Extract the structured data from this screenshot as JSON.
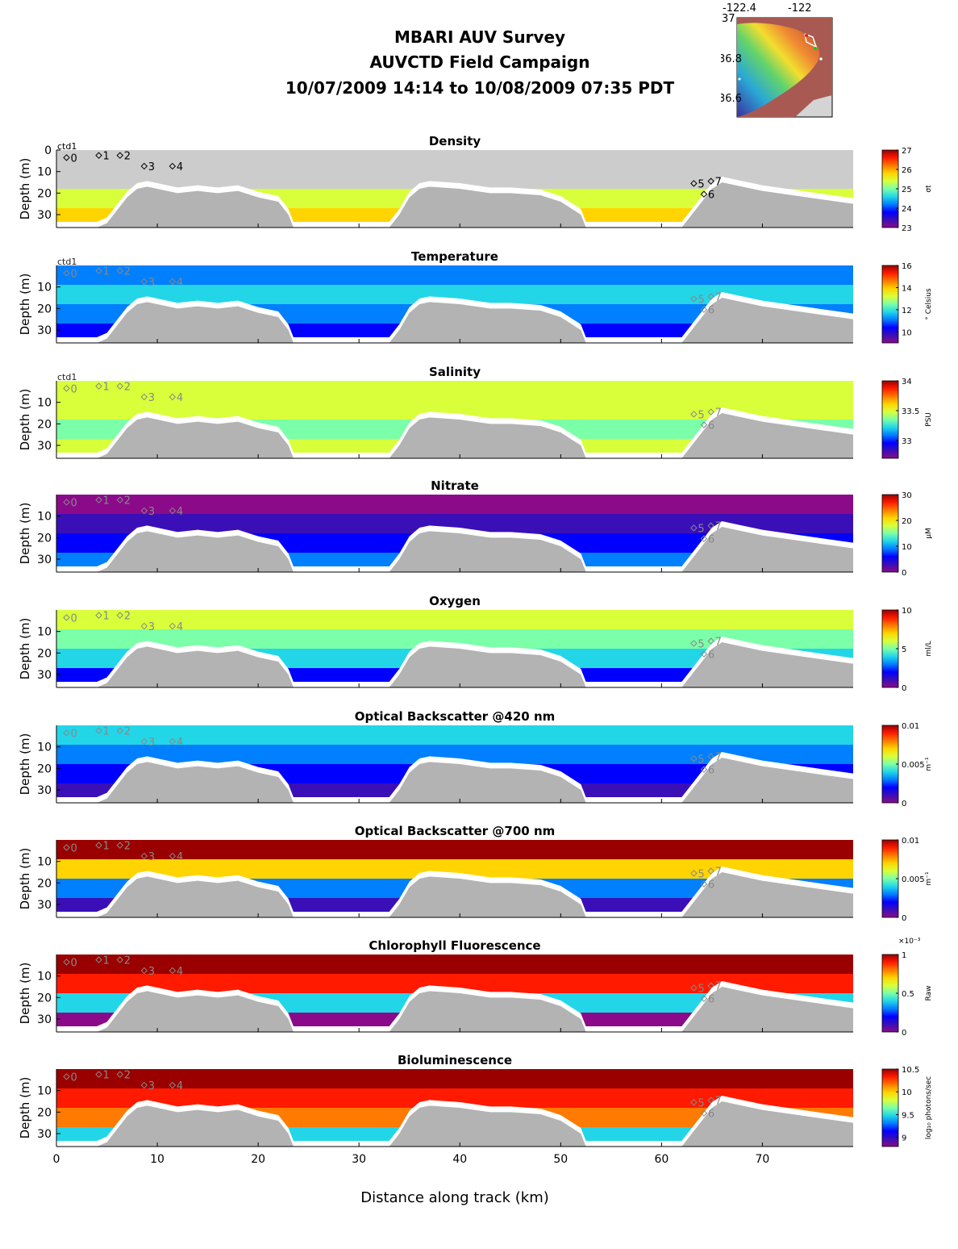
{
  "title": {
    "line1": "MBARI AUV Survey",
    "line2": "AUVCTD Field Campaign",
    "line3": "10/07/2009 14:14  to 10/08/2009 07:35 PDT"
  },
  "map_inset": {
    "x_ticks": [
      "-122.4",
      "-122"
    ],
    "y_ticks": [
      "37",
      "36.8",
      "36.6"
    ]
  },
  "colors": {
    "terrain": "#b3b3b3",
    "no_data": "#cccccc",
    "white_band": "#ffffff"
  },
  "chart_data": {
    "type": "heatmap",
    "xlabel": "Distance along track (km)",
    "xlim": [
      0,
      79
    ],
    "x_ticks": [
      "0",
      "10",
      "20",
      "30",
      "40",
      "50",
      "60",
      "70"
    ],
    "x_tick_values": [
      0,
      10,
      20,
      30,
      40,
      50,
      60,
      70
    ],
    "ylim": [
      36,
      0
    ],
    "stations": {
      "labels": [
        "ctd1",
        "0",
        "1",
        "2",
        "3",
        "4",
        "5",
        "6",
        "7"
      ]
    },
    "panels": [
      {
        "id": "density",
        "title": "Density",
        "ylabel": "Depth (m)",
        "y_ticks": [
          "0",
          "10",
          "20",
          "30"
        ],
        "cbar_label": "σt",
        "cbar_ticks": [
          "27",
          "26",
          "25",
          "24",
          "23"
        ],
        "clim": [
          23,
          27
        ]
      },
      {
        "id": "temperature",
        "title": "Temperature",
        "ylabel": "Depth (m)",
        "y_ticks": [
          "10",
          "20",
          "30"
        ],
        "cbar_label": "° Celsius",
        "cbar_ticks": [
          "16",
          "14",
          "12",
          "10"
        ],
        "clim": [
          9,
          16
        ]
      },
      {
        "id": "salinity",
        "title": "Salinity",
        "ylabel": "Depth (m)",
        "y_ticks": [
          "10",
          "20",
          "30"
        ],
        "cbar_label": "PSU",
        "cbar_ticks": [
          "34",
          "33.5",
          "33"
        ],
        "clim": [
          32.7,
          34
        ]
      },
      {
        "id": "nitrate",
        "title": "Nitrate",
        "ylabel": "Depth (m)",
        "y_ticks": [
          "10",
          "20",
          "30"
        ],
        "cbar_label": "μM",
        "cbar_ticks": [
          "30",
          "20",
          "10",
          "0"
        ],
        "clim": [
          0,
          30
        ]
      },
      {
        "id": "oxygen",
        "title": "Oxygen",
        "ylabel": "Depth (m)",
        "y_ticks": [
          "10",
          "20",
          "30"
        ],
        "cbar_label": "ml/L",
        "cbar_ticks": [
          "10",
          "5",
          "0"
        ],
        "clim": [
          0,
          10
        ]
      },
      {
        "id": "bb420",
        "title": "Optical Backscatter @420 nm",
        "ylabel": "Depth (m)",
        "y_ticks": [
          "10",
          "20",
          "30"
        ],
        "cbar_label": "m⁻¹",
        "cbar_ticks": [
          "0.01",
          "0.005",
          "0"
        ],
        "clim": [
          0,
          0.01
        ]
      },
      {
        "id": "bb700",
        "title": "Optical Backscatter @700 nm",
        "ylabel": "Depth (m)",
        "y_ticks": [
          "10",
          "20",
          "30"
        ],
        "cbar_label": "m⁻¹",
        "cbar_ticks": [
          "0.01",
          "0.005",
          "0"
        ],
        "clim": [
          0,
          0.01
        ]
      },
      {
        "id": "chl",
        "title": "Chlorophyll Fluorescence",
        "ylabel": "Depth (m)",
        "y_ticks": [
          "10",
          "20",
          "30"
        ],
        "cbar_label": "Raw",
        "cbar_exp": "×10⁻³",
        "cbar_ticks": [
          "1",
          "0.5",
          "0"
        ],
        "clim": [
          0,
          1
        ]
      },
      {
        "id": "biolum",
        "title": "Bioluminescence",
        "ylabel": "Depth (m)",
        "y_ticks": [
          "10",
          "20",
          "30"
        ],
        "cbar_label": "log₁₀ photons/sec",
        "cbar_ticks": [
          "10.5",
          "10",
          "9.5",
          "9"
        ],
        "clim": [
          8.8,
          10.5
        ]
      }
    ]
  }
}
